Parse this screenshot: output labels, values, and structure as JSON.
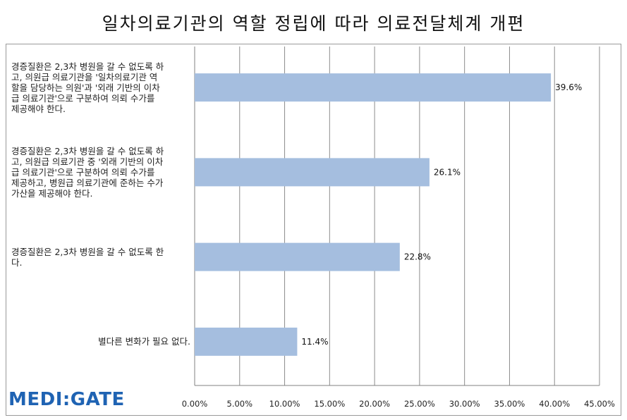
{
  "title": "일차의료기관의 역할 정립에 따라 의료전달체계 개편",
  "logo": {
    "text": "MEDI:GATE"
  },
  "chart_data": {
    "type": "bar",
    "orientation": "horizontal",
    "categories": [
      "경증질환은 2,3차 병원을 갈 수 없도록 하고, 의원급 의료기관을 '일차의료기관 역할을 담당하는 의원'과 '외래 기반의 이차급 의료기관'으로 구분하여 의뢰 수가를 제공해야 한다.",
      "경증질환은 2,3차 병원을 갈 수 없도록 하고, 의원급 의료기관 중 '외래 기반의 이차급 의료기관'으로 구분하여 의뢰 수가를 제공하고, 병원급 의료기관에 준하는 수가 가산을 제공해야 한다.",
      "경증질환은 2,3차 병원을 갈 수 없도록 한다.",
      "별다른 변화가 필요 없다."
    ],
    "category_lines": [
      [
        "경증질환은 2,3차 병원을 갈 수 없도록 하",
        "고, 의원급 의료기관을 '일차의료기관 역",
        "할을 담당하는 의원'과 '외래 기반의 이차",
        "급 의료기관'으로 구분하여 의뢰 수가를",
        "제공해야 한다."
      ],
      [
        "경증질환은 2,3차 병원을 갈 수 없도록 하",
        "고, 의원급 의료기관 중 '외래 기반의 이차",
        "급 의료기관'으로 구분하여 의뢰 수가를",
        "제공하고, 병원급 의료기관에 준하는 수가",
        "가산을 제공해야 한다."
      ],
      [
        "경증질환은 2,3차 병원을 갈 수 없도록 한",
        "다."
      ],
      [
        "별다른 변화가 필요 없다."
      ]
    ],
    "values": [
      39.6,
      26.1,
      22.8,
      11.4
    ],
    "value_labels": [
      "39.6%",
      "26.1%",
      "22.8%",
      "11.4%"
    ],
    "xlim": [
      0,
      45
    ],
    "x_ticks": [
      0,
      5,
      10,
      15,
      20,
      25,
      30,
      35,
      40,
      45
    ],
    "x_tick_labels": [
      "0.00%",
      "5.00%",
      "10.00%",
      "15.00%",
      "20.00%",
      "25.00%",
      "30.00%",
      "35.00%",
      "40.00%",
      "45.00%"
    ],
    "grid": true,
    "bar_color": "#a5bedf",
    "xlabel": "",
    "ylabel": ""
  }
}
